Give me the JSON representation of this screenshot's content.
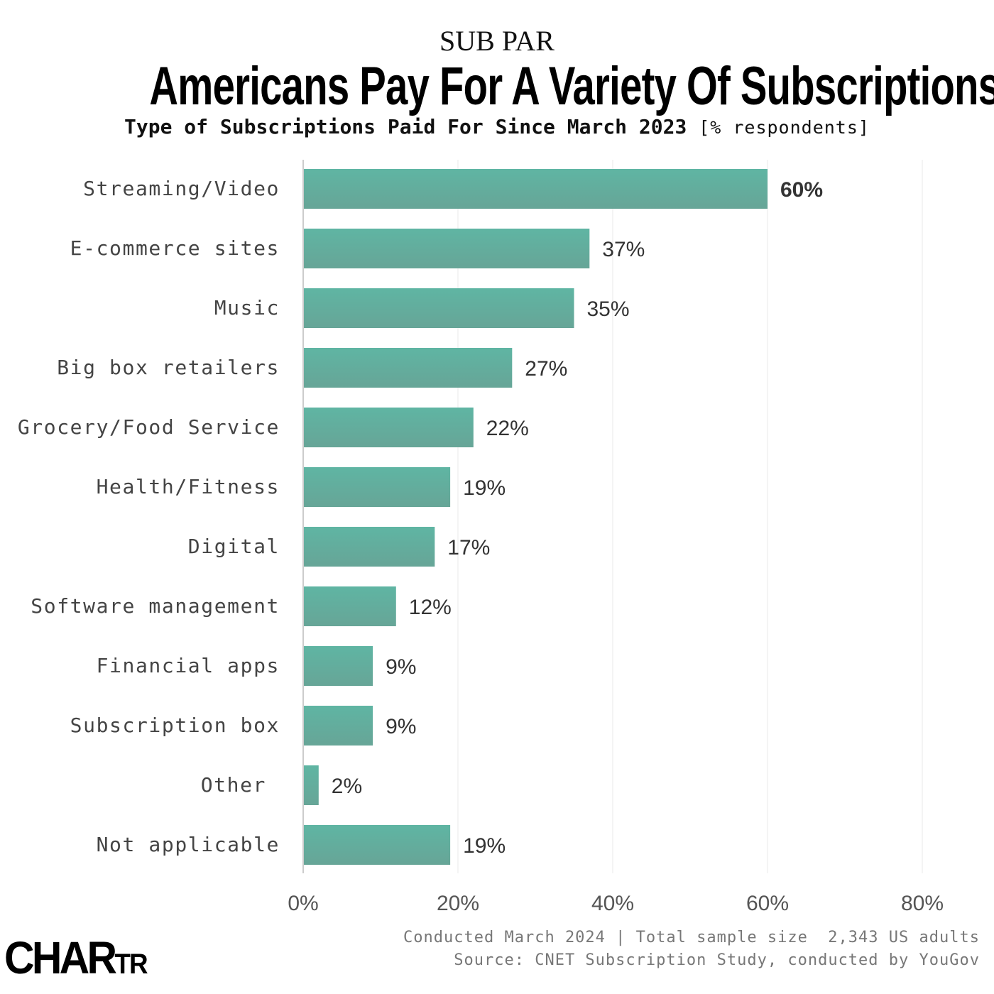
{
  "kicker": "SUB PAR",
  "logo": "CHARTR",
  "footer": {
    "line1": "Conducted March 2024 | Total sample size  2,343 US adults",
    "line2": "Source: CNET Subscription Study, conducted by YouGov"
  },
  "chart_data": {
    "type": "bar",
    "orientation": "horizontal",
    "title": "Americans Pay For A Variety Of Subscriptions",
    "subtitle": "Type of Subscriptions Paid For Since March 2023",
    "unit_label": "[% respondents]",
    "categories": [
      "Streaming/Video",
      "E-commerce sites",
      "Music",
      "Big box retailers",
      "Grocery/Food Service",
      "Health/Fitness",
      "Digital",
      "Software management",
      "Financial apps",
      "Subscription box",
      "Other",
      "Not applicable"
    ],
    "values": [
      60,
      37,
      35,
      27,
      22,
      19,
      17,
      12,
      9,
      9,
      2,
      19
    ],
    "value_labels": [
      "60%",
      "37%",
      "35%",
      "27%",
      "22%",
      "19%",
      "17%",
      "12%",
      "9%",
      "9%",
      "2%",
      "19%"
    ],
    "xlim": [
      0,
      80
    ],
    "xticks": [
      0,
      20,
      40,
      60,
      80
    ],
    "xtick_labels": [
      "0%",
      "20%",
      "40%",
      "60%",
      "80%"
    ],
    "grid": true,
    "bar_color": "#5fb5a3",
    "bar_color_bottom": "#67a597"
  }
}
